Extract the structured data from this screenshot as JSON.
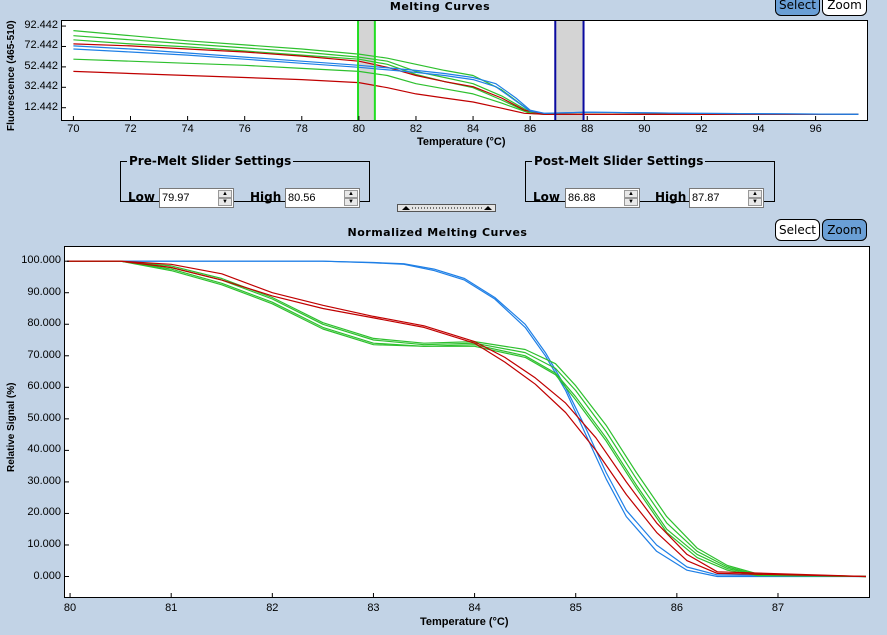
{
  "top_panel": {
    "title": "Melting Curves",
    "select_label": "Select",
    "zoom_label": "Zoom",
    "active_tool": "Select"
  },
  "bottom_panel": {
    "title": "Normalized Melting Curves",
    "select_label": "Select",
    "zoom_label": "Zoom",
    "active_tool": "Zoom"
  },
  "pre_melt": {
    "legend": "Pre-Melt Slider Settings",
    "low_label": "Low",
    "low_value": "79.97",
    "high_label": "High",
    "high_value": "80.56"
  },
  "post_melt": {
    "legend": "Post-Melt Slider Settings",
    "low_label": "Low",
    "low_value": "86.88",
    "high_label": "High",
    "high_value": "87.87"
  },
  "colors": {
    "red": "#c00000",
    "green": "#2ec02e",
    "blue": "#1e7fe6",
    "pre_slider": "#22dd22",
    "post_slider": "#0a0aa0",
    "select_active": "#6a9fd6"
  },
  "chart_data": [
    {
      "type": "line",
      "title": "Melting Curves",
      "xlabel": "Temperature (°C)",
      "ylabel": "Fluorescence (465-510)",
      "xlim": [
        69.6,
        97.8
      ],
      "ylim": [
        0.4,
        97.4
      ],
      "x_ticks": [
        "70",
        "72",
        "74",
        "76",
        "78",
        "80",
        "82",
        "84",
        "86",
        "88",
        "90",
        "92",
        "94",
        "96"
      ],
      "y_ticks": [
        "92.442",
        "72.442",
        "52.442",
        "32.442",
        "12.442"
      ],
      "grid": false,
      "pre_melt_region": [
        79.97,
        80.56
      ],
      "post_melt_region": [
        86.88,
        87.87
      ],
      "series": [
        {
          "color": "green",
          "x": [
            70,
            72,
            74,
            76,
            78,
            80,
            81,
            82,
            83,
            84,
            85,
            86,
            86.5,
            88,
            97.5
          ],
          "y": [
            88,
            83,
            78,
            74,
            70,
            65,
            61,
            55,
            49,
            44,
            30,
            9,
            6,
            6,
            6
          ]
        },
        {
          "color": "green",
          "x": [
            70,
            72,
            74,
            76,
            78,
            80,
            81,
            82,
            83,
            84,
            85,
            86,
            86.5,
            88,
            97.5
          ],
          "y": [
            83,
            79,
            75,
            71,
            67,
            62,
            58,
            48,
            42,
            36,
            24,
            8,
            6,
            6,
            6
          ]
        },
        {
          "color": "green",
          "x": [
            70,
            72,
            74,
            76,
            78,
            80,
            81,
            82,
            83,
            84,
            85,
            86,
            86.5,
            88,
            97.5
          ],
          "y": [
            79,
            75,
            72,
            68,
            64,
            60,
            55,
            45,
            38,
            32,
            20,
            7,
            6,
            6,
            6
          ]
        },
        {
          "color": "green",
          "x": [
            70,
            72,
            74,
            76,
            78,
            80,
            81,
            82,
            83,
            84,
            85,
            86,
            86.5,
            88,
            97.5
          ],
          "y": [
            60,
            58,
            56,
            54,
            51,
            48,
            44,
            36,
            31,
            26,
            17,
            7,
            6,
            6,
            6
          ]
        },
        {
          "color": "red",
          "x": [
            70,
            72,
            74,
            76,
            78,
            80,
            81,
            82,
            83,
            84,
            85,
            85.8,
            86.5,
            88,
            97.5
          ],
          "y": [
            75,
            73,
            70,
            67,
            63,
            58,
            52,
            44,
            38,
            33,
            22,
            10,
            6,
            6,
            6
          ]
        },
        {
          "color": "red",
          "x": [
            70,
            72,
            74,
            76,
            78,
            80,
            81,
            82,
            83,
            84,
            85,
            85.8,
            86.5,
            88,
            97.5
          ],
          "y": [
            48,
            46,
            44,
            42,
            40,
            37,
            32,
            26,
            22,
            18,
            12,
            7,
            6,
            6,
            6
          ]
        },
        {
          "color": "blue",
          "x": [
            70,
            72,
            74,
            76,
            78,
            80,
            82,
            83,
            84,
            84.8,
            85.5,
            86,
            86.5,
            88,
            91.7,
            97.5
          ],
          "y": [
            73,
            70,
            66,
            62,
            58,
            54,
            49,
            46,
            42,
            36,
            22,
            10,
            7,
            8,
            7,
            6
          ]
        },
        {
          "color": "blue",
          "x": [
            70,
            72,
            74,
            76,
            78,
            80,
            82,
            83,
            84,
            84.8,
            85.5,
            86,
            86.5,
            88,
            91.7,
            97.5
          ],
          "y": [
            70,
            67,
            64,
            60,
            56,
            52,
            47,
            44,
            40,
            33,
            19,
            9,
            7,
            8,
            7,
            6
          ]
        }
      ]
    },
    {
      "type": "line",
      "title": "Normalized Melting Curves",
      "xlabel": "Temperature (°C)",
      "ylabel": "Relative Signal (%)",
      "xlim": [
        79.95,
        87.9
      ],
      "ylim": [
        -6.5,
        104.5
      ],
      "x_ticks": [
        "80",
        "81",
        "82",
        "83",
        "84",
        "85",
        "86",
        "87"
      ],
      "y_ticks": [
        "100.000",
        "90.000",
        "80.000",
        "70.000",
        "60.000",
        "50.000",
        "40.000",
        "30.000",
        "20.000",
        "10.000",
        "0.000"
      ],
      "grid": false,
      "series": [
        {
          "color": "blue",
          "x": [
            79.97,
            81,
            82,
            82.5,
            83,
            83.3,
            83.6,
            83.9,
            84.2,
            84.5,
            84.7,
            84.9,
            85.1,
            85.3,
            85.5,
            85.8,
            86.1,
            86.4,
            87.87
          ],
          "y": [
            100,
            100,
            100,
            100,
            99.5,
            99,
            97,
            94,
            88,
            79,
            70,
            59,
            45,
            31,
            19,
            8,
            2,
            0,
            0
          ]
        },
        {
          "color": "blue",
          "x": [
            79.97,
            81,
            82,
            82.5,
            83,
            83.3,
            83.6,
            83.9,
            84.2,
            84.5,
            84.7,
            84.9,
            85.1,
            85.3,
            85.5,
            85.8,
            86.1,
            86.4,
            87.87
          ],
          "y": [
            100,
            100,
            100,
            100,
            99.6,
            99.2,
            97.5,
            94.5,
            88.5,
            80,
            71,
            60,
            47,
            33,
            21,
            10,
            3,
            0.5,
            0
          ]
        },
        {
          "color": "green",
          "x": [
            79.97,
            80.5,
            81,
            81.5,
            82,
            82.5,
            83,
            83.5,
            84,
            84.5,
            84.8,
            85,
            85.3,
            85.6,
            85.9,
            86.2,
            86.5,
            86.8,
            87.87
          ],
          "y": [
            100,
            100,
            98,
            94,
            88,
            80,
            75,
            73.5,
            74,
            71,
            66,
            59,
            46,
            31,
            17,
            8,
            3,
            0.5,
            0
          ]
        },
        {
          "color": "green",
          "x": [
            79.97,
            80.5,
            81,
            81.5,
            82,
            82.5,
            83,
            83.5,
            84,
            84.5,
            84.8,
            85,
            85.3,
            85.6,
            85.9,
            86.2,
            86.5,
            86.8,
            87.87
          ],
          "y": [
            100,
            100,
            97.5,
            93,
            87,
            79,
            74,
            73,
            73.5,
            70,
            64.5,
            57,
            44,
            29,
            15,
            7,
            2.5,
            0.5,
            0
          ]
        },
        {
          "color": "green",
          "x": [
            79.97,
            80.5,
            81,
            81.5,
            82,
            82.5,
            83,
            83.5,
            84,
            84.5,
            84.8,
            85,
            85.3,
            85.6,
            85.9,
            86.2,
            86.5,
            86.8,
            87.87
          ],
          "y": [
            100,
            100,
            98.5,
            94.5,
            88.5,
            80.5,
            75.5,
            74,
            74.5,
            72,
            67.5,
            60.5,
            48,
            33,
            19,
            9,
            3.5,
            0.8,
            0
          ]
        },
        {
          "color": "green",
          "x": [
            79.97,
            80.5,
            81,
            81.5,
            82,
            82.5,
            83,
            83.5,
            84,
            84.5,
            84.8,
            85,
            85.3,
            85.6,
            85.9,
            86.2,
            86.5,
            86.8,
            87.87
          ],
          "y": [
            100,
            100,
            97,
            92.5,
            86.5,
            78.5,
            73.5,
            73,
            73,
            69.5,
            64,
            56,
            43,
            28,
            14,
            6,
            2,
            0.3,
            0
          ]
        },
        {
          "color": "red",
          "x": [
            79.97,
            80.5,
            81,
            81.5,
            82,
            82.5,
            83,
            83.5,
            84,
            84.3,
            84.6,
            84.9,
            85.2,
            85.5,
            85.8,
            86.1,
            86.4,
            87.87
          ],
          "y": [
            100,
            100,
            98,
            94,
            89,
            85,
            82,
            79,
            74,
            68,
            61,
            52,
            40,
            26,
            14,
            5,
            1,
            0
          ]
        },
        {
          "color": "red",
          "x": [
            79.97,
            80.5,
            81,
            81.5,
            82,
            82.5,
            83,
            83.5,
            84,
            84.3,
            84.6,
            84.9,
            85.2,
            85.5,
            85.8,
            86.1,
            86.4,
            87.87
          ],
          "y": [
            100,
            100,
            99,
            96,
            90,
            86,
            82.5,
            79.5,
            74.5,
            69.5,
            63,
            55,
            44,
            30,
            17,
            7,
            1.5,
            0
          ]
        }
      ]
    }
  ]
}
